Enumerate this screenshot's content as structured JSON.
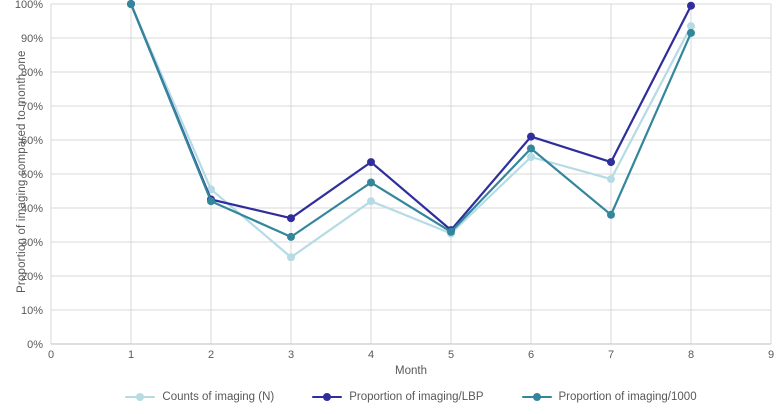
{
  "chart_data": {
    "type": "line",
    "title": "",
    "xlabel": "Month",
    "ylabel": "Proportion of imaging compared to month one",
    "x": [
      1,
      2,
      3,
      4,
      5,
      6,
      7,
      8
    ],
    "xlim": [
      0,
      9
    ],
    "ylim": [
      0,
      100
    ],
    "x_ticks": [
      0,
      1,
      2,
      3,
      4,
      5,
      6,
      7,
      8,
      9
    ],
    "y_ticks": [
      0,
      10,
      20,
      30,
      40,
      50,
      60,
      70,
      80,
      90,
      100
    ],
    "y_tick_suffix": "%",
    "grid": "on",
    "legend_position": "bottom",
    "series": [
      {
        "name": "Counts of imaging (N)",
        "color": "#b5dbe4",
        "values": [
          100,
          45.5,
          25.5,
          42,
          32.5,
          55,
          48.5,
          93.5
        ]
      },
      {
        "name": "Proportion of imaging/LBP",
        "color": "#302d9c",
        "values": [
          100,
          42.5,
          37,
          53.5,
          33.5,
          61,
          53.5,
          99.5
        ]
      },
      {
        "name": "Proportion of imaging/1000",
        "color": "#33869c",
        "values": [
          100,
          42,
          31.5,
          47.5,
          33,
          57.5,
          38,
          91.5
        ]
      }
    ],
    "colors": {
      "gridline": "#d9d9d9",
      "axis_line": "#bfbfbf",
      "tick_text": "#595959"
    }
  }
}
